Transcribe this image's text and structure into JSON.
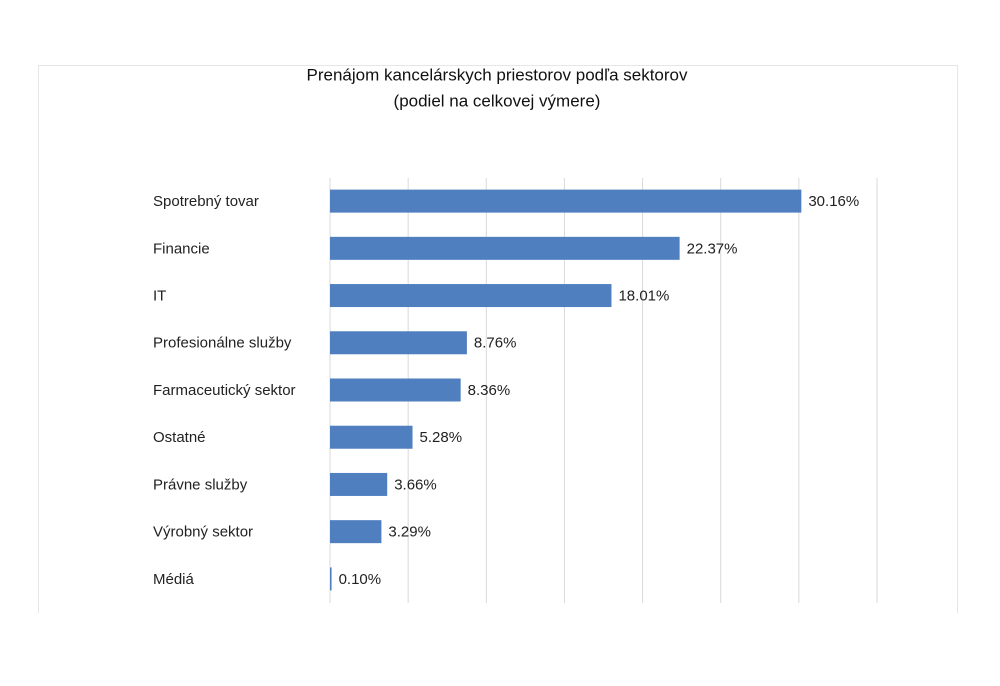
{
  "chart_data": {
    "type": "hbar",
    "title": "Prenájom kancelárskych priestorov podľa sektorov",
    "subtitle": "(podiel na celkovej výmere)",
    "categories": [
      "Spotrebný tovar",
      "Financie",
      "IT",
      "Profesionálne služby",
      "Farmaceutický sektor",
      "Ostatné",
      "Právne služby",
      "Výrobný sektor",
      "Médiá"
    ],
    "values": [
      30.16,
      22.37,
      18.01,
      8.76,
      8.36,
      5.28,
      3.66,
      3.29,
      0.1
    ],
    "value_labels": [
      "30.16%",
      "22.37%",
      "18.01%",
      "8.76%",
      "8.36%",
      "5.28%",
      "3.66%",
      "3.29%",
      "0.10%"
    ],
    "color": "#4f7fbf",
    "xlim": [
      0,
      35
    ],
    "xticks": [
      0,
      5,
      10,
      15,
      20,
      25,
      30,
      35
    ],
    "grid": true
  }
}
